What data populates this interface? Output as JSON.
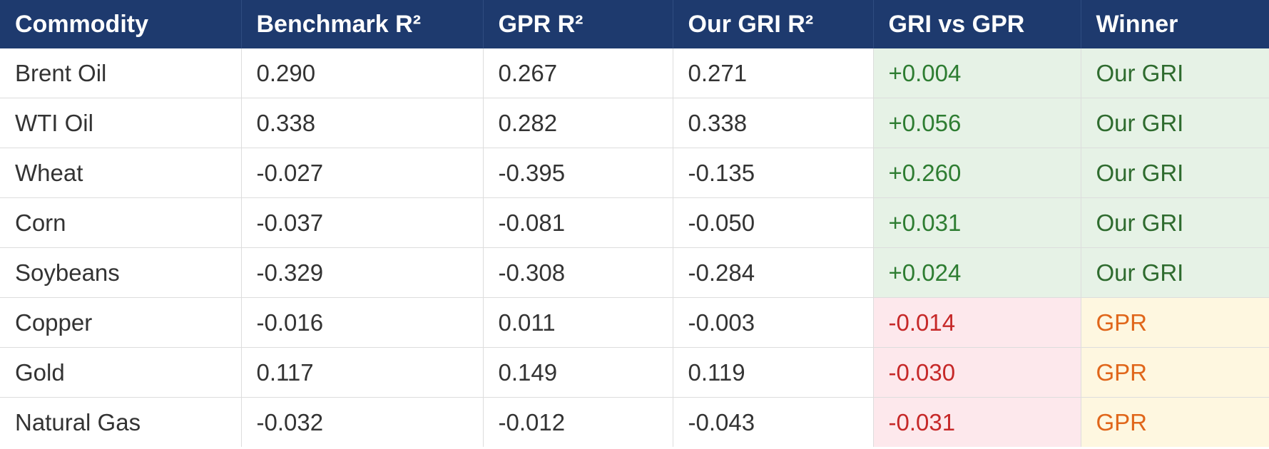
{
  "table": {
    "headers": [
      "Commodity",
      "Benchmark R²",
      "GPR R²",
      "Our GRI R²",
      "GRI vs GPR",
      "Winner"
    ],
    "rows": [
      {
        "commodity": "Brent Oil",
        "benchmark": "0.290",
        "gpr": "0.267",
        "gri": "0.271",
        "diff": "+0.004",
        "winner": "Our GRI",
        "diff_sign": "pos",
        "winner_key": "gri"
      },
      {
        "commodity": "WTI Oil",
        "benchmark": "0.338",
        "gpr": "0.282",
        "gri": "0.338",
        "diff": "+0.056",
        "winner": "Our GRI",
        "diff_sign": "pos",
        "winner_key": "gri"
      },
      {
        "commodity": "Wheat",
        "benchmark": "-0.027",
        "gpr": "-0.395",
        "gri": "-0.135",
        "diff": "+0.260",
        "winner": "Our GRI",
        "diff_sign": "pos",
        "winner_key": "gri"
      },
      {
        "commodity": "Corn",
        "benchmark": "-0.037",
        "gpr": "-0.081",
        "gri": "-0.050",
        "diff": "+0.031",
        "winner": "Our GRI",
        "diff_sign": "pos",
        "winner_key": "gri"
      },
      {
        "commodity": "Soybeans",
        "benchmark": "-0.329",
        "gpr": "-0.308",
        "gri": "-0.284",
        "diff": "+0.024",
        "winner": "Our GRI",
        "diff_sign": "pos",
        "winner_key": "gri"
      },
      {
        "commodity": "Copper",
        "benchmark": "-0.016",
        "gpr": "0.011",
        "gri": "-0.003",
        "diff": "-0.014",
        "winner": "GPR",
        "diff_sign": "neg",
        "winner_key": "gpr"
      },
      {
        "commodity": "Gold",
        "benchmark": "0.117",
        "gpr": "0.149",
        "gri": "0.119",
        "diff": "-0.030",
        "winner": "GPR",
        "diff_sign": "neg",
        "winner_key": "gpr"
      },
      {
        "commodity": "Natural Gas",
        "benchmark": "-0.032",
        "gpr": "-0.012",
        "gri": "-0.043",
        "diff": "-0.031",
        "winner": "GPR",
        "diff_sign": "neg",
        "winner_key": "gpr"
      }
    ]
  },
  "colors": {
    "header_bg": "#1e3a6e",
    "positive_bg": "#e6f2e6",
    "positive_text": "#2e7d32",
    "negative_bg": "#fde8ec",
    "negative_text": "#c62828",
    "gpr_winner_bg": "#fef7e0",
    "gpr_winner_text": "#e0661a"
  }
}
